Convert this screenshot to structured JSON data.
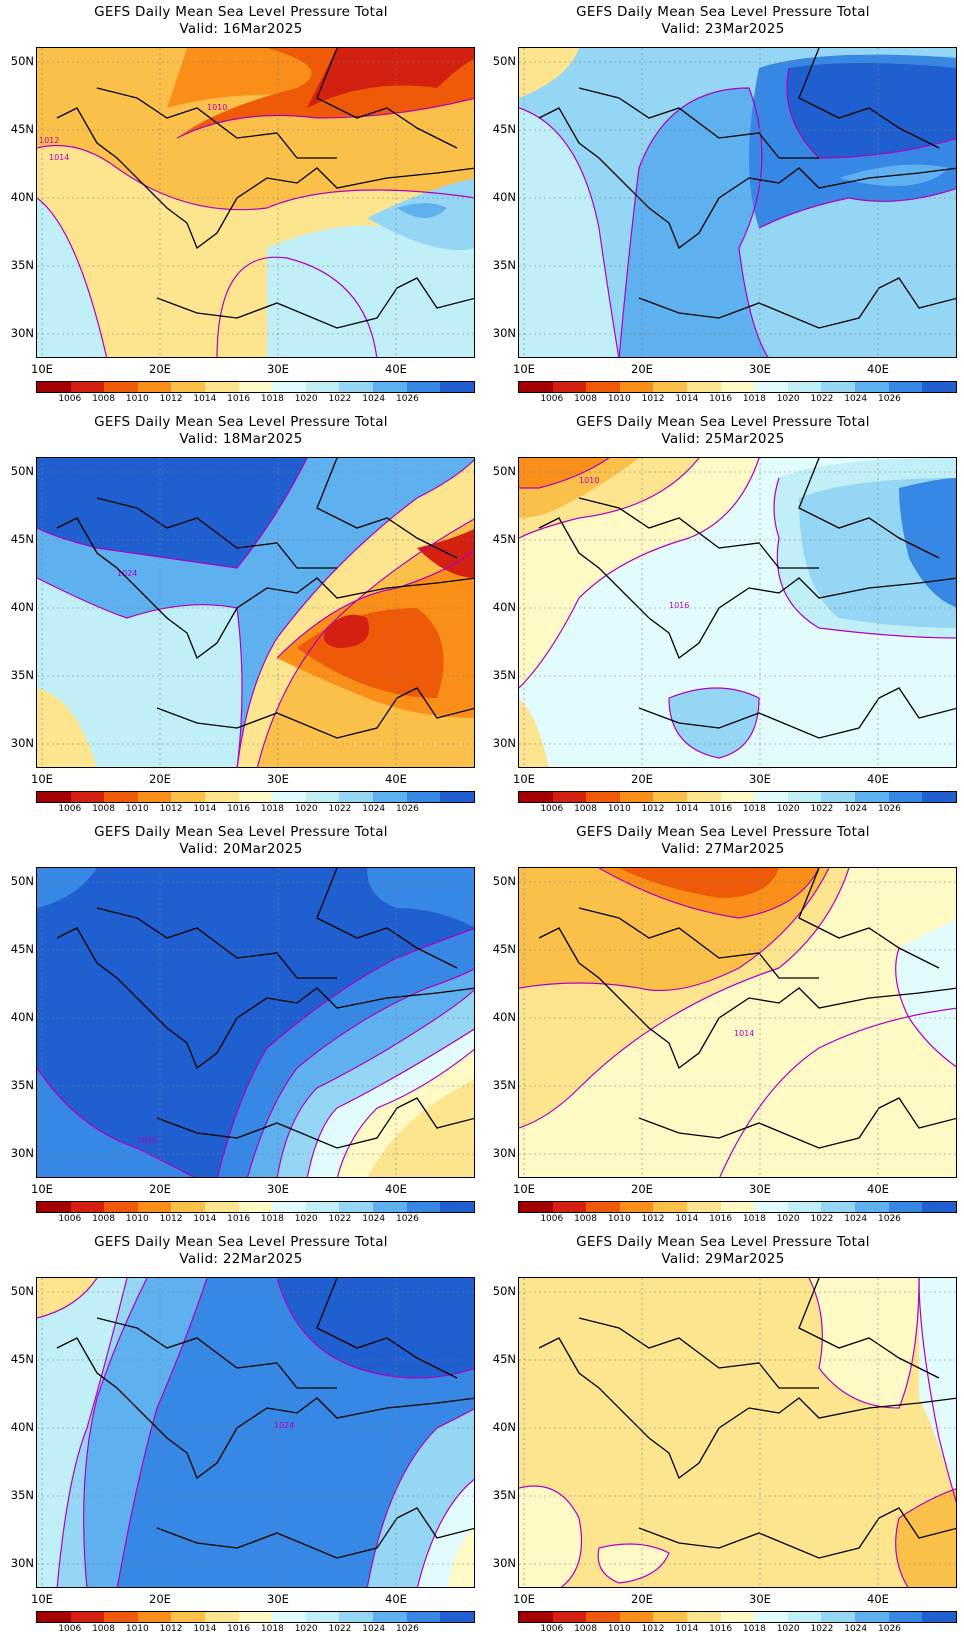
{
  "colorbar": {
    "labels": [
      "1006",
      "1008",
      "1010",
      "1012",
      "1014",
      "1016",
      "1018",
      "1020",
      "1022",
      "1024",
      "1026"
    ],
    "colors": [
      "#a50000",
      "#d42010",
      "#ee5a08",
      "#f98f18",
      "#fbc04a",
      "#fde58f",
      "#fff9c6",
      "#e2fbfd",
      "#c0eff8",
      "#95d6f5",
      "#5fb0ef",
      "#3787e4",
      "#1f5fcf"
    ]
  },
  "axes": {
    "lat_labels": [
      "50N",
      "45N",
      "40N",
      "35N",
      "30N"
    ],
    "lon_labels": [
      "10E",
      "20E",
      "30E",
      "40E"
    ]
  },
  "panels": [
    {
      "title": "GEFS Daily Mean Sea Level Pressure Total",
      "valid": "Valid: 16Mar2025",
      "base": "#fde58f",
      "contours": [
        "1010",
        "1012",
        "1014"
      ]
    },
    {
      "title": "GEFS Daily Mean Sea Level Pressure Total",
      "valid": "Valid: 23Mar2025",
      "base": "#95d6f5",
      "contours": []
    },
    {
      "title": "GEFS Daily Mean Sea Level Pressure Total",
      "valid": "Valid: 18Mar2025",
      "base": "#5fb0ef",
      "contours": [
        "1024"
      ]
    },
    {
      "title": "GEFS Daily Mean Sea Level Pressure Total",
      "valid": "Valid: 25Mar2025",
      "base": "#e2fbfd",
      "contours": [
        "1010",
        "1016"
      ]
    },
    {
      "title": "GEFS Daily Mean Sea Level Pressure Total",
      "valid": "Valid: 20Mar2025",
      "base": "#1f5fcf",
      "contours": [
        "1026"
      ]
    },
    {
      "title": "GEFS Daily Mean Sea Level Pressure Total",
      "valid": "Valid: 27Mar2025",
      "base": "#fff9c6",
      "contours": [
        "1014"
      ]
    },
    {
      "title": "GEFS Daily Mean Sea Level Pressure Total",
      "valid": "Valid: 22Mar2025",
      "base": "#5fb0ef",
      "contours": [
        "1024"
      ]
    },
    {
      "title": "GEFS Daily Mean Sea Level Pressure Total",
      "valid": "Valid: 29Mar2025",
      "base": "#fde58f",
      "contours": []
    }
  ]
}
